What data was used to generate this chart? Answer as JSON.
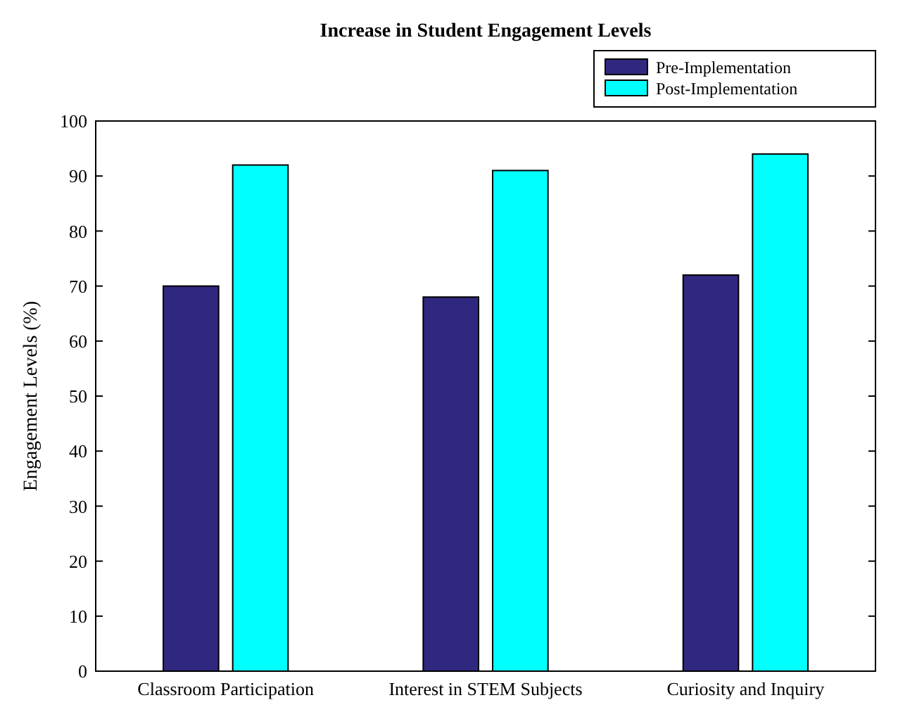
{
  "chart_data": {
    "type": "bar",
    "title": "Increase in Student Engagement Levels",
    "ylabel": "Engagement Levels (%)",
    "categories": [
      "Classroom Participation",
      "Interest in STEM Subjects",
      "Curiosity and Inquiry"
    ],
    "series": [
      {
        "name": "Pre-Implementation",
        "color": "#30287f",
        "values": [
          70,
          68,
          72
        ]
      },
      {
        "name": "Post-Implementation",
        "color": "#00ffff",
        "values": [
          92,
          91,
          94
        ]
      }
    ],
    "ylim": [
      0,
      100
    ],
    "yticks": [
      0,
      10,
      20,
      30,
      40,
      50,
      60,
      70,
      80,
      90,
      100
    ],
    "grid": false,
    "legend": "top right"
  }
}
